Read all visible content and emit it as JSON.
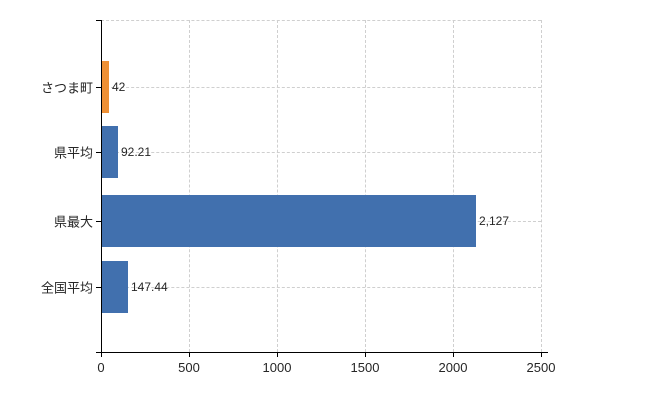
{
  "chart_data": {
    "type": "bar",
    "orientation": "horizontal",
    "title": "",
    "xlabel": "",
    "ylabel": "",
    "categories": [
      "さつま町",
      "県平均",
      "県最大",
      "全国平均"
    ],
    "values": [
      42,
      92.21,
      2127,
      147.44
    ],
    "value_labels": [
      "42",
      "92.21",
      "2,127",
      "147.44"
    ],
    "bar_colors": [
      "#EE9035",
      "#4170AE",
      "#4170AE",
      "#4170AE"
    ],
    "xlim": [
      0,
      2500
    ],
    "x_ticks": [
      0,
      500,
      1000,
      1500,
      2000,
      2500
    ],
    "x_tick_labels": [
      "0",
      "500",
      "1000",
      "1500",
      "2000",
      "2500"
    ],
    "grid": true,
    "gridline_style": "dashed",
    "legend": false,
    "colors": {
      "highlight_bar": "#EE9035",
      "default_bar": "#4170AE",
      "gridline": "#CFCFCF",
      "axis_line": "#000000",
      "text": "#262626",
      "background": "#FFFFFF"
    }
  }
}
